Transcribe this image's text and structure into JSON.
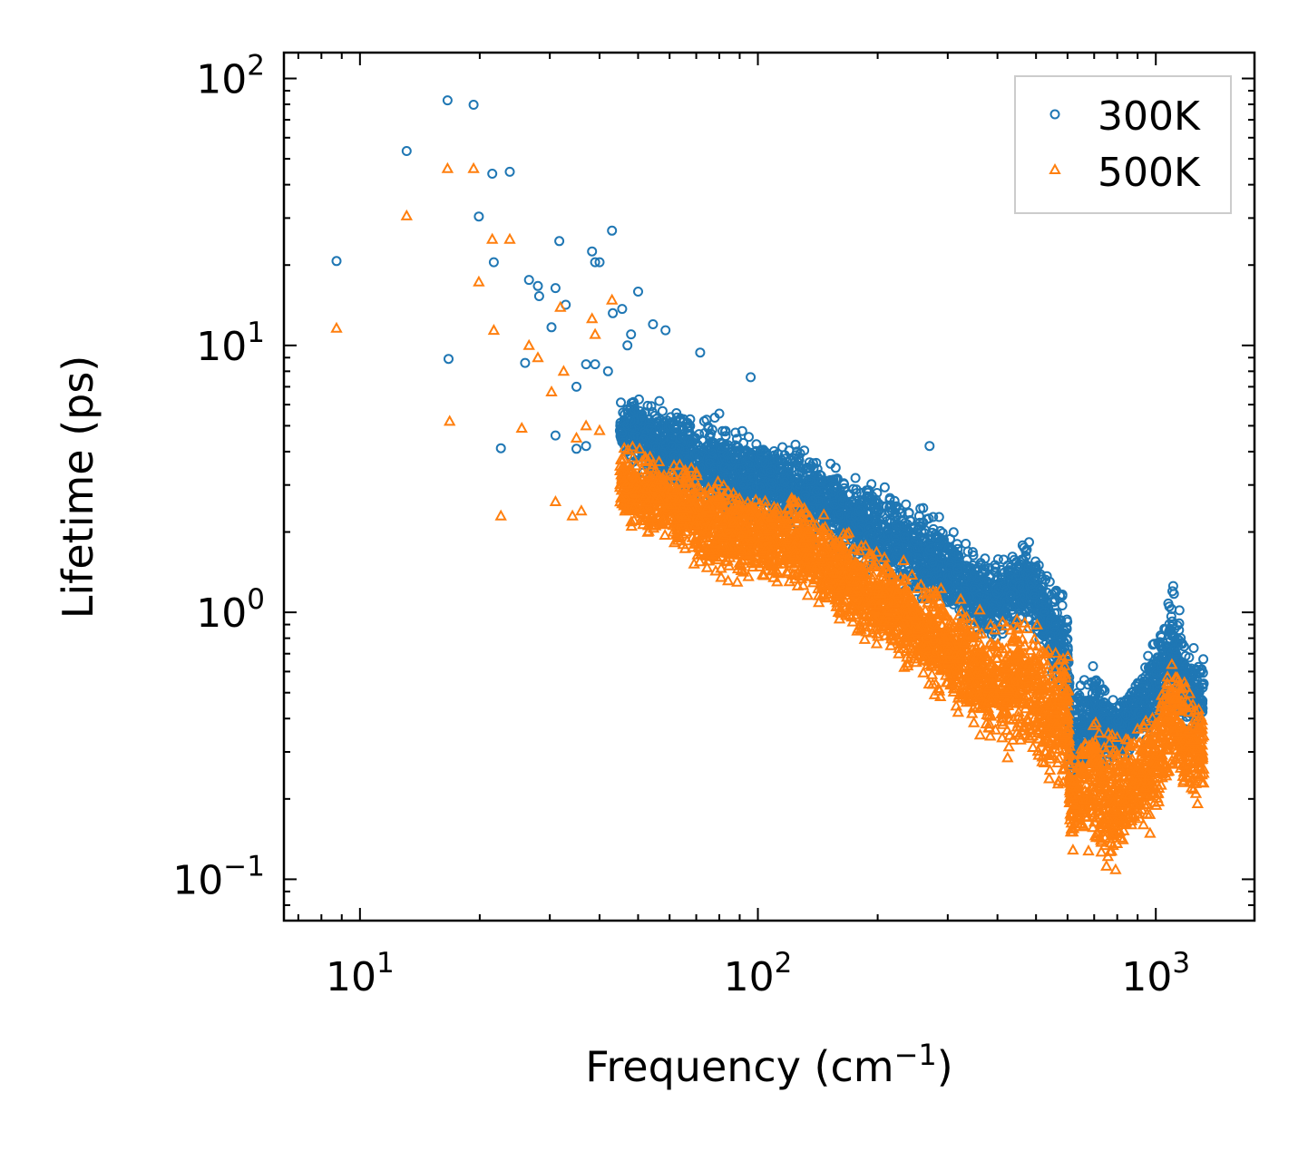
{
  "chart_data": {
    "type": "scatter",
    "xlabel": "Frequency (cm",
    "xlabel_sup": "−1",
    "xlabel_tail": ")",
    "ylabel": "Lifetime (ps)",
    "xscale": "log",
    "yscale": "log",
    "xlim": [
      6.44,
      1770
    ],
    "ylim": [
      0.07,
      125
    ],
    "xticks": [
      {
        "base": "10",
        "exp": "1",
        "value": 10
      },
      {
        "base": "10",
        "exp": "2",
        "value": 100
      },
      {
        "base": "10",
        "exp": "3",
        "value": 1000
      }
    ],
    "yticks": [
      {
        "base": "10",
        "exp": "−1",
        "value": 0.1
      },
      {
        "base": "10",
        "exp": "0",
        "value": 1
      },
      {
        "base": "10",
        "exp": "1",
        "value": 10
      },
      {
        "base": "10",
        "exp": "2",
        "value": 100
      }
    ],
    "legend_position": "top-right",
    "series": [
      {
        "name": "300K",
        "color": "#1f77b4",
        "marker": "circle",
        "points": [
          [
            16.6,
            82.8
          ],
          [
            19.3,
            79.7
          ],
          [
            13.1,
            53.5
          ],
          [
            21.5,
            44
          ],
          [
            23.8,
            44.7
          ],
          [
            19.9,
            30.4
          ],
          [
            8.73,
            20.7
          ],
          [
            21.7,
            20.5
          ],
          [
            31.7,
            24.6
          ],
          [
            43,
            26.9
          ],
          [
            38.3,
            22.5
          ],
          [
            39,
            20.5
          ],
          [
            40,
            20.5
          ],
          [
            26.6,
            17.6
          ],
          [
            28,
            16.7
          ],
          [
            28.2,
            15.3
          ],
          [
            31,
            16.4
          ],
          [
            32.9,
            14.2
          ],
          [
            50,
            15.9
          ],
          [
            45.6,
            13.7
          ],
          [
            43.2,
            13.2
          ],
          [
            30.3,
            11.7
          ],
          [
            16.7,
            8.9
          ],
          [
            22.6,
            4.12
          ],
          [
            54.5,
            12
          ],
          [
            58.6,
            11.4
          ],
          [
            71.6,
            9.4
          ],
          [
            95.9,
            7.6
          ],
          [
            270,
            4.2
          ],
          [
            26,
            8.6
          ],
          [
            35,
            7
          ],
          [
            37,
            8.5
          ],
          [
            39,
            8.5
          ],
          [
            31,
            4.6
          ],
          [
            35,
            4.1
          ],
          [
            37,
            4.2
          ],
          [
            47,
            10
          ],
          [
            48,
            11
          ],
          [
            42,
            8
          ]
        ],
        "density_band": [
          [
            45,
            3.5,
            7
          ],
          [
            60,
            2.5,
            6.5
          ],
          [
            80,
            2,
            6
          ],
          [
            100,
            2,
            5
          ],
          [
            130,
            1.8,
            4.5
          ],
          [
            170,
            1.5,
            3.5
          ],
          [
            220,
            1.1,
            3
          ],
          [
            300,
            0.9,
            2.3
          ],
          [
            380,
            0.7,
            1.7
          ],
          [
            420,
            0.8,
            1.7
          ],
          [
            480,
            0.8,
            2.1
          ],
          [
            540,
            0.6,
            1.4
          ],
          [
            600,
            0.4,
            1.3
          ],
          [
            610,
            0.2,
            0.5
          ],
          [
            700,
            0.25,
            0.7
          ],
          [
            800,
            0.25,
            0.5
          ],
          [
            900,
            0.3,
            0.6
          ],
          [
            1000,
            0.3,
            0.9
          ],
          [
            1100,
            0.4,
            1.4
          ],
          [
            1200,
            0.3,
            0.9
          ],
          [
            1320,
            0.3,
            0.8
          ]
        ]
      },
      {
        "name": "500K",
        "color": "#ff7f0e",
        "marker": "triangle",
        "points": [
          [
            16.6,
            46
          ],
          [
            19.3,
            46
          ],
          [
            13.1,
            30.6
          ],
          [
            21.5,
            25
          ],
          [
            23.8,
            25
          ],
          [
            19.9,
            17.3
          ],
          [
            8.73,
            11.6
          ],
          [
            21.7,
            11.4
          ],
          [
            16.8,
            5.2
          ],
          [
            22.6,
            2.3
          ],
          [
            31,
            2.6
          ],
          [
            34.2,
            2.3
          ],
          [
            36,
            2.4
          ],
          [
            31.9,
            13.9
          ],
          [
            43,
            14.8
          ],
          [
            38.3,
            12.6
          ],
          [
            26.6,
            10
          ],
          [
            28,
            9
          ],
          [
            30.3,
            6.7
          ],
          [
            25.5,
            4.9
          ],
          [
            32.5,
            8
          ],
          [
            39,
            11
          ],
          [
            35,
            4.5
          ],
          [
            37,
            5
          ],
          [
            40,
            4.8
          ]
        ],
        "density_band": [
          [
            45,
            2,
            4.5
          ],
          [
            60,
            1.7,
            4
          ],
          [
            80,
            1.2,
            3.5
          ],
          [
            100,
            1.2,
            3
          ],
          [
            130,
            1.1,
            2.8
          ],
          [
            170,
            0.8,
            2.2
          ],
          [
            220,
            0.6,
            1.7
          ],
          [
            300,
            0.4,
            1.3
          ],
          [
            380,
            0.3,
            1
          ],
          [
            480,
            0.25,
            1.2
          ],
          [
            540,
            0.2,
            0.9
          ],
          [
            600,
            0.2,
            0.9
          ],
          [
            610,
            0.12,
            0.3
          ],
          [
            700,
            0.12,
            0.5
          ],
          [
            760,
            0.09,
            0.4
          ],
          [
            900,
            0.13,
            0.4
          ],
          [
            1000,
            0.15,
            0.5
          ],
          [
            1100,
            0.2,
            0.9
          ],
          [
            1200,
            0.15,
            0.6
          ],
          [
            1320,
            0.2,
            0.5
          ]
        ]
      }
    ]
  }
}
